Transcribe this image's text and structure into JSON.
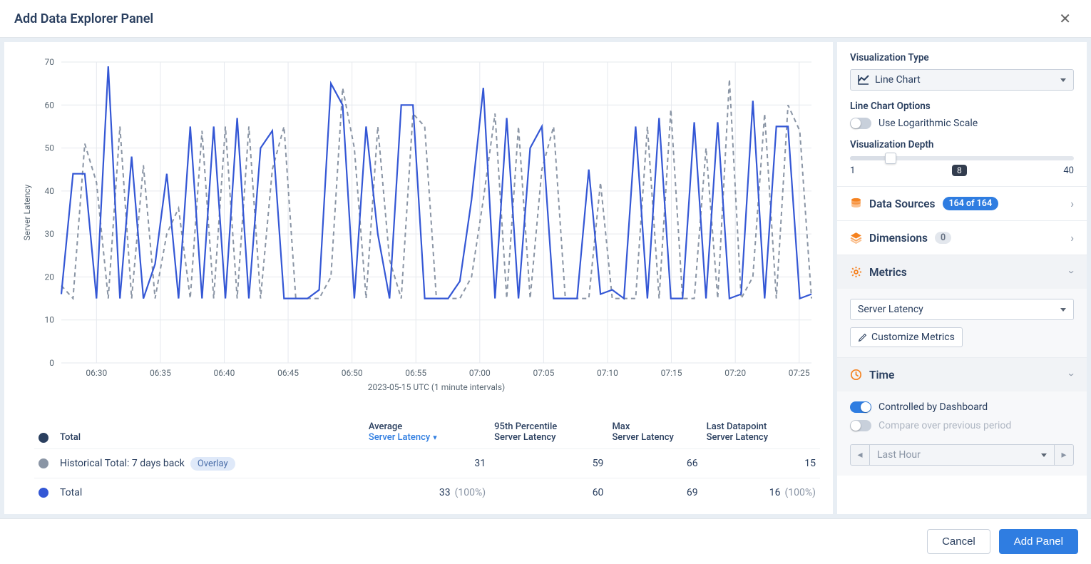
{
  "dialog": {
    "title": "Add Data Explorer Panel"
  },
  "chart": {
    "type": "line",
    "y_axis_label": "Server Latency",
    "y_ticks": [
      0,
      10,
      20,
      30,
      40,
      50,
      60,
      70
    ],
    "ylim": [
      0,
      70
    ],
    "x_ticks": [
      "06:30",
      "06:35",
      "06:40",
      "06:45",
      "06:50",
      "06:55",
      "07:00",
      "07:05",
      "07:10",
      "07:15",
      "07:20",
      "07:25"
    ],
    "x_axis_subtitle": "2023-05-15 UTC (1 minute intervals)",
    "grid_color": "#e6e9ee",
    "background_color": "#ffffff",
    "series": [
      {
        "name": "Total",
        "color": "#3457d5",
        "style": "solid",
        "values": [
          16,
          44,
          44,
          15,
          69,
          15,
          48,
          15,
          23,
          44,
          15,
          55,
          15,
          55,
          15,
          57,
          15,
          50,
          54,
          15,
          15,
          15,
          17,
          65,
          60,
          15,
          55,
          30,
          15,
          60,
          60,
          15,
          15,
          15,
          19,
          38,
          64,
          15,
          57,
          15,
          50,
          55,
          15,
          15,
          15,
          45,
          16,
          17,
          15,
          55,
          15,
          57,
          15,
          15,
          56,
          15,
          56,
          15,
          16,
          61,
          15,
          55,
          55,
          15,
          16
        ]
      },
      {
        "name": "Historical Total: 7 days back",
        "color": "#8a95a5",
        "style": "dashed",
        "values": [
          18,
          15,
          51,
          42,
          15,
          55,
          15,
          46,
          15,
          30,
          36,
          15,
          54,
          15,
          55,
          15,
          55,
          15,
          45,
          55,
          15,
          15,
          15,
          20,
          64,
          50,
          15,
          55,
          24,
          15,
          58,
          55,
          15,
          15,
          15,
          20,
          38,
          58,
          15,
          55,
          15,
          45,
          55,
          15,
          15,
          15,
          42,
          15,
          15,
          15,
          55,
          15,
          59,
          15,
          15,
          50,
          15,
          66,
          15,
          20,
          58,
          15,
          60,
          54,
          15
        ]
      }
    ]
  },
  "table": {
    "columns": [
      {
        "line1": "",
        "line2": "Total"
      },
      {
        "line1": "Average",
        "line2": "Server Latency",
        "highlight": true,
        "sort": true
      },
      {
        "line1": "95th Percentile",
        "line2": "Server Latency"
      },
      {
        "line1": "Max",
        "line2": "Server Latency"
      },
      {
        "line1": "Last Datapoint",
        "line2": "Server Latency"
      }
    ],
    "rows": [
      {
        "dot_color": "#8a95a5",
        "label": "Historical Total: 7 days back",
        "badge": "Overlay",
        "avg": "31",
        "p95": "59",
        "max": "66",
        "last": "15"
      },
      {
        "dot_color": "#3457d5",
        "label": "Total",
        "avg": "33",
        "avg_pct": "(100%)",
        "p95": "60",
        "max": "69",
        "last": "16",
        "last_pct": "(100%)"
      }
    ],
    "header_dot_color": "#2a3f5f"
  },
  "side": {
    "viz_type": {
      "label": "Visualization Type",
      "value": "Line Chart"
    },
    "line_opts": {
      "label": "Line Chart Options",
      "log_label": "Use Logarithmic Scale",
      "log_on": false
    },
    "depth": {
      "label": "Visualization Depth",
      "min": "1",
      "max": "40",
      "value": "8",
      "value_pct": 0.18
    },
    "data_sources": {
      "label": "Data Sources",
      "badge": "164 of 164"
    },
    "dimensions": {
      "label": "Dimensions",
      "badge": "0"
    },
    "metrics": {
      "label": "Metrics",
      "selected": "Server Latency",
      "customize": "Customize Metrics"
    },
    "time": {
      "label": "Time",
      "controlled_label": "Controlled by Dashboard",
      "controlled_on": true,
      "compare_label": "Compare over previous period",
      "compare_on": false,
      "range": "Last Hour"
    }
  },
  "footer": {
    "cancel": "Cancel",
    "add": "Add Panel"
  },
  "colors": {
    "accent_blue": "#2f7de1",
    "accent_orange": "#f58220"
  }
}
